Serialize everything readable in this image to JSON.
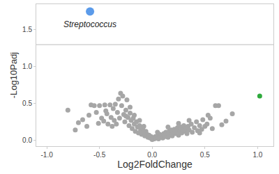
{
  "chart_data": {
    "type": "scatter",
    "x_label": "Log2FoldChange",
    "y_label": "-Log10Padj",
    "xlim": [
      -1.1,
      1.15
    ],
    "ylim": [
      -0.08,
      1.85
    ],
    "xticks": [
      {
        "value": -1,
        "label": "-1.0"
      },
      {
        "value": -0.5,
        "label": "-0.5"
      },
      {
        "value": 0,
        "label": "0.0"
      },
      {
        "value": 0.5,
        "label": "0.5"
      },
      {
        "value": 1,
        "label": "1.0"
      }
    ],
    "yticks": [
      {
        "value": 0,
        "label": "0.0"
      },
      {
        "value": 0.5,
        "label": "0.5"
      },
      {
        "value": 1,
        "label": "1.0"
      },
      {
        "value": 1.5,
        "label": "1.5"
      }
    ],
    "grid": false,
    "threshold": 1.3,
    "series": [
      {
        "color": "#a6a6a6",
        "marker": "circle",
        "x": [
          -0.8,
          -0.73,
          -0.7,
          -0.66,
          -0.62,
          -0.58,
          -0.55,
          -0.53,
          -0.5,
          -0.48,
          -0.46,
          -0.45,
          -0.43,
          -0.42,
          -0.4,
          -0.39,
          -0.37,
          -0.36,
          -0.35,
          -0.33,
          -0.32,
          -0.31,
          -0.3,
          -0.29,
          -0.28,
          -0.27,
          -0.26,
          -0.25,
          -0.24,
          -0.23,
          -0.22,
          -0.21,
          -0.2,
          -0.19,
          -0.18,
          -0.17,
          -0.16,
          -0.15,
          -0.14,
          -0.13,
          -0.12,
          -0.11,
          -0.1,
          -0.09,
          -0.08,
          -0.07,
          -0.06,
          -0.05,
          -0.04,
          -0.03,
          -0.02,
          -0.01,
          0.0,
          0.01,
          0.02,
          0.03,
          0.04,
          0.05,
          0.06,
          0.07,
          0.08,
          0.09,
          0.1,
          0.11,
          0.12,
          0.13,
          0.14,
          0.15,
          0.16,
          0.17,
          0.18,
          0.19,
          0.2,
          0.21,
          0.22,
          0.23,
          0.24,
          0.25,
          0.26,
          0.27,
          0.28,
          0.29,
          0.3,
          0.31,
          0.32,
          0.33,
          0.34,
          0.35,
          0.37,
          0.38,
          0.4,
          0.42,
          0.43,
          0.45,
          0.47,
          0.48,
          0.5,
          0.52,
          0.55,
          0.57,
          0.6,
          0.63,
          0.66,
          0.7,
          0.76,
          -0.6,
          -0.51,
          -0.44,
          -0.38,
          -0.34,
          -0.25,
          -0.21,
          -0.17,
          -0.12,
          -0.08,
          0.05,
          0.15,
          0.25,
          0.35,
          0.45,
          0.53
        ],
        "values": [
          0.41,
          0.14,
          0.24,
          0.28,
          0.19,
          0.48,
          0.47,
          0.38,
          0.47,
          0.3,
          0.26,
          0.48,
          0.36,
          0.22,
          0.48,
          0.31,
          0.43,
          0.27,
          0.49,
          0.38,
          0.56,
          0.3,
          0.64,
          0.47,
          0.6,
          0.35,
          0.25,
          0.41,
          0.55,
          0.31,
          0.2,
          0.37,
          0.27,
          0.16,
          0.3,
          0.22,
          0.12,
          0.25,
          0.18,
          0.1,
          0.2,
          0.14,
          0.08,
          0.16,
          0.11,
          0.06,
          0.12,
          0.08,
          0.04,
          0.07,
          0.03,
          0.05,
          0.01,
          0.03,
          0.02,
          0.05,
          0.03,
          0.06,
          0.02,
          0.08,
          0.04,
          0.07,
          0.03,
          0.09,
          0.05,
          0.11,
          0.07,
          0.04,
          0.12,
          0.08,
          0.14,
          0.06,
          0.1,
          0.15,
          0.09,
          0.13,
          0.17,
          0.07,
          0.12,
          0.18,
          0.1,
          0.15,
          0.2,
          0.12,
          0.16,
          0.09,
          0.19,
          0.14,
          0.22,
          0.11,
          0.17,
          0.25,
          0.13,
          0.2,
          0.15,
          0.28,
          0.19,
          0.22,
          0.3,
          0.16,
          0.47,
          0.47,
          0.21,
          0.26,
          0.36,
          0.34,
          0.23,
          0.4,
          0.19,
          0.22,
          0.33,
          0.45,
          0.34,
          0.27,
          0.19,
          0.11,
          0.18,
          0.23,
          0.27,
          0.1,
          0.34
        ]
      },
      {
        "label": "Streptococcus",
        "color": "#5b9bea",
        "marker": "circle",
        "x": [
          -0.59
        ],
        "values": [
          1.75
        ]
      },
      {
        "color": "#2eaa3c",
        "marker": "circle",
        "x": [
          1.02
        ],
        "values": [
          0.6
        ]
      }
    ]
  }
}
